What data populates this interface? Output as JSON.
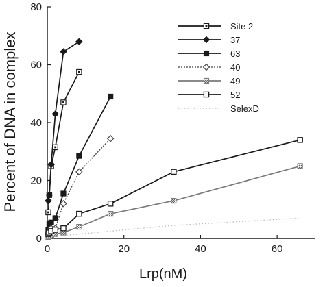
{
  "chart_data": {
    "type": "line",
    "xlabel": "Lrp(nM)",
    "ylabel": "Percent of DNA in complex",
    "xlim": [
      0,
      70
    ],
    "ylim": [
      0,
      80
    ],
    "xticks": [
      0,
      20,
      40,
      60
    ],
    "yticks": [
      0,
      20,
      40,
      60,
      80
    ],
    "grid": false,
    "legend_position": "top-right",
    "series": [
      {
        "name": "Site 2",
        "marker": "square-dot",
        "line": "solid",
        "color": "#1a1a1a",
        "points": [
          [
            0.26,
            9
          ],
          [
            0.52,
            15
          ],
          [
            1.0,
            25
          ],
          [
            2.1,
            31.5
          ],
          [
            4.2,
            47
          ],
          [
            8.3,
            57.5
          ]
        ]
      },
      {
        "name": "37",
        "marker": "diamond-filled",
        "line": "solid",
        "color": "#1a1a1a",
        "points": [
          [
            0.26,
            13
          ],
          [
            0.52,
            15
          ],
          [
            1.0,
            25.5
          ],
          [
            2.1,
            43
          ],
          [
            4.2,
            64.5
          ],
          [
            8.3,
            68
          ]
        ]
      },
      {
        "name": "63",
        "marker": "square-filled",
        "line": "solid",
        "color": "#1a1a1a",
        "points": [
          [
            0.26,
            3
          ],
          [
            0.52,
            5
          ],
          [
            1.0,
            5.5
          ],
          [
            2.1,
            7
          ],
          [
            4.2,
            15.5
          ],
          [
            8.3,
            28.5
          ],
          [
            16.5,
            49
          ]
        ]
      },
      {
        "name": "40",
        "marker": "diamond-open",
        "line": "dotted",
        "color": "#444444",
        "points": [
          [
            0.26,
            1.5
          ],
          [
            0.52,
            2.5
          ],
          [
            1.0,
            3.5
          ],
          [
            2.1,
            3.5
          ],
          [
            4.2,
            12
          ],
          [
            8.3,
            23
          ],
          [
            16.5,
            34.5
          ]
        ]
      },
      {
        "name": "49",
        "marker": "square-hatched",
        "line": "solid",
        "color": "#7a7a7a",
        "points": [
          [
            0.26,
            0.5
          ],
          [
            0.52,
            0.8
          ],
          [
            1.0,
            1.0
          ],
          [
            2.1,
            1.5
          ],
          [
            4.2,
            2.0
          ],
          [
            8.3,
            4.0
          ],
          [
            16.5,
            8.5
          ],
          [
            33,
            13
          ],
          [
            66,
            25
          ]
        ]
      },
      {
        "name": "52",
        "marker": "square-open",
        "line": "solid",
        "color": "#1a1a1a",
        "points": [
          [
            0.26,
            1.5
          ],
          [
            0.52,
            2.0
          ],
          [
            1.0,
            2.5
          ],
          [
            2.1,
            3.0
          ],
          [
            4.2,
            3.5
          ],
          [
            8.3,
            8.5
          ],
          [
            16.5,
            12
          ],
          [
            33,
            23
          ],
          [
            66,
            34
          ]
        ]
      },
      {
        "name": "SelexD",
        "marker": "none",
        "line": "dotted-faint",
        "color": "#b5b5b5",
        "points": [
          [
            0.26,
            0.3
          ],
          [
            1.0,
            0.6
          ],
          [
            2.1,
            0.8
          ],
          [
            4.2,
            1.0
          ],
          [
            8.3,
            1.5
          ],
          [
            16.5,
            2.5
          ],
          [
            33,
            4.5
          ],
          [
            66,
            7
          ]
        ]
      }
    ]
  }
}
